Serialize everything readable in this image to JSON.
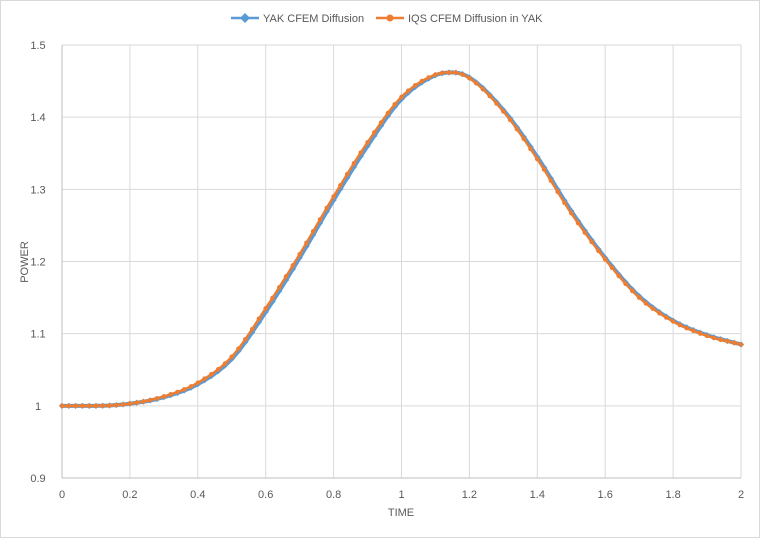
{
  "chart_data": {
    "type": "line",
    "title": "",
    "xlabel": "TIME",
    "ylabel": "POWER",
    "xlim": [
      0,
      2
    ],
    "ylim": [
      0.9,
      1.5
    ],
    "x_ticks": [
      "0",
      "0.2",
      "0.4",
      "0.6",
      "0.8",
      "1",
      "1.2",
      "1.4",
      "1.6",
      "1.8",
      "2"
    ],
    "y_ticks": [
      "0.9",
      "1",
      "1.1",
      "1.2",
      "1.3",
      "1.4",
      "1.5"
    ],
    "grid": true,
    "legend_position": "top",
    "x": [
      0,
      0.1,
      0.2,
      0.3,
      0.4,
      0.5,
      0.6,
      0.7,
      0.8,
      0.9,
      1.0,
      1.1,
      1.15,
      1.2,
      1.3,
      1.4,
      1.5,
      1.6,
      1.7,
      1.8,
      1.9,
      2.0
    ],
    "series": [
      {
        "name": "YAK CFEM Diffusion",
        "color": "#5B9BD5",
        "marker": "diamond",
        "values": [
          1.0,
          1.0,
          1.003,
          1.012,
          1.03,
          1.065,
          1.13,
          1.205,
          1.285,
          1.36,
          1.425,
          1.458,
          1.462,
          1.455,
          1.41,
          1.345,
          1.27,
          1.205,
          1.152,
          1.118,
          1.098,
          1.085
        ]
      },
      {
        "name": "IQS CFEM Diffusion in YAK",
        "color": "#ED7D31",
        "marker": "circle",
        "values": [
          1.0,
          1.0,
          1.003,
          1.013,
          1.032,
          1.068,
          1.135,
          1.21,
          1.29,
          1.365,
          1.428,
          1.459,
          1.462,
          1.454,
          1.408,
          1.342,
          1.267,
          1.203,
          1.15,
          1.117,
          1.097,
          1.085
        ]
      }
    ]
  }
}
